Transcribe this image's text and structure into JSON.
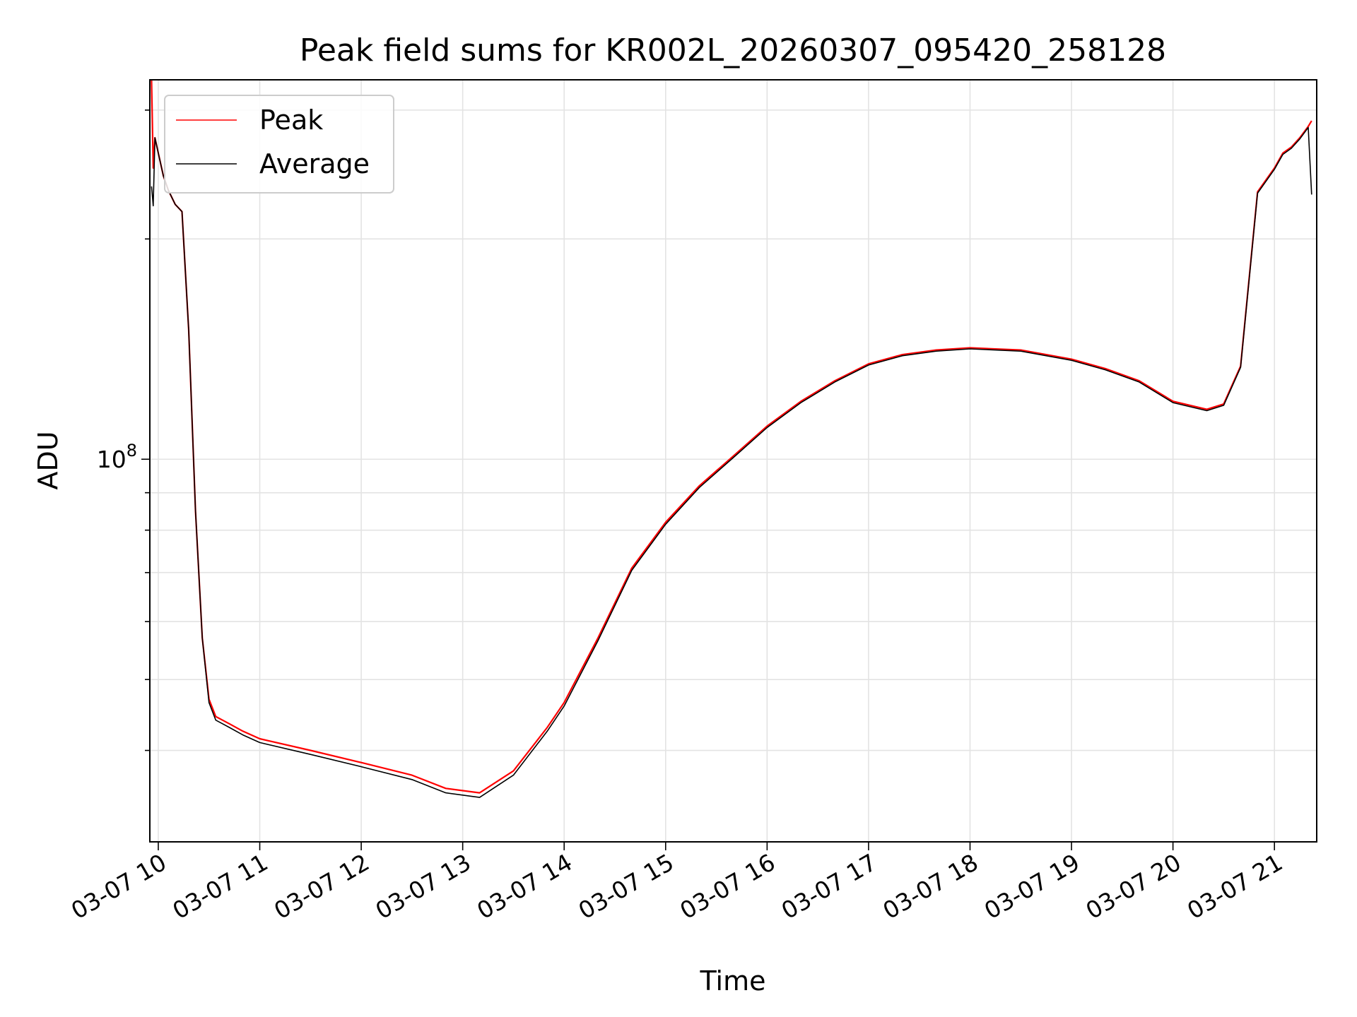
{
  "chart_data": {
    "type": "line",
    "title": "Peak field sums for KR002L_20260307_095420_258128",
    "xlabel": "Time",
    "ylabel": "ADU",
    "x_scale": "time",
    "y_scale": "log",
    "xlim": [
      "03-07 09:55",
      "03-07 21:25"
    ],
    "ylim": [
      30000000,
      330000000
    ],
    "grid": true,
    "legend_position": "top-left",
    "x_ticks": [
      {
        "value": "03-07 10:00",
        "label": "03-07 10"
      },
      {
        "value": "03-07 11:00",
        "label": "03-07 11"
      },
      {
        "value": "03-07 12:00",
        "label": "03-07 12"
      },
      {
        "value": "03-07 13:00",
        "label": "03-07 13"
      },
      {
        "value": "03-07 14:00",
        "label": "03-07 14"
      },
      {
        "value": "03-07 15:00",
        "label": "03-07 15"
      },
      {
        "value": "03-07 16:00",
        "label": "03-07 16"
      },
      {
        "value": "03-07 17:00",
        "label": "03-07 17"
      },
      {
        "value": "03-07 18:00",
        "label": "03-07 18"
      },
      {
        "value": "03-07 19:00",
        "label": "03-07 19"
      },
      {
        "value": "03-07 20:00",
        "label": "03-07 20"
      },
      {
        "value": "03-07 21:00",
        "label": "03-07 21"
      }
    ],
    "y_major_ticks": [
      {
        "value": 100000000,
        "label_base": "10",
        "label_exp": "8"
      }
    ],
    "y_minor_ticks": [
      40000000,
      50000000,
      60000000,
      70000000,
      80000000,
      90000000,
      200000000,
      300000000
    ],
    "series": [
      {
        "name": "Peak",
        "color": "#ff0000",
        "x": [
          "03-07 09:56",
          "03-07 09:57",
          "03-07 09:58",
          "03-07 10:00",
          "03-07 10:03",
          "03-07 10:06",
          "03-07 10:10",
          "03-07 10:14",
          "03-07 10:18",
          "03-07 10:22",
          "03-07 10:26",
          "03-07 10:30",
          "03-07 10:34",
          "03-07 10:38",
          "03-07 10:42",
          "03-07 10:50",
          "03-07 11:00",
          "03-07 11:30",
          "03-07 12:00",
          "03-07 12:30",
          "03-07 12:50",
          "03-07 13:10",
          "03-07 13:30",
          "03-07 13:50",
          "03-07 14:00",
          "03-07 14:20",
          "03-07 14:40",
          "03-07 15:00",
          "03-07 15:20",
          "03-07 15:40",
          "03-07 16:00",
          "03-07 16:20",
          "03-07 16:40",
          "03-07 17:00",
          "03-07 17:20",
          "03-07 17:40",
          "03-07 18:00",
          "03-07 18:30",
          "03-07 19:00",
          "03-07 19:20",
          "03-07 19:40",
          "03-07 20:00",
          "03-07 20:20",
          "03-07 20:30",
          "03-07 20:40",
          "03-07 20:50",
          "03-07 21:00",
          "03-07 21:05",
          "03-07 21:10",
          "03-07 21:15",
          "03-07 21:20",
          "03-07 21:22"
        ],
        "y": [
          330000000,
          250000000,
          275000000,
          262000000,
          244000000,
          233000000,
          223000000,
          218000000,
          150000000,
          85000000,
          57000000,
          47000000,
          44500000,
          44000000,
          43500000,
          42500000,
          41500000,
          40000000,
          38500000,
          37000000,
          35500000,
          35000000,
          37500000,
          43000000,
          46500000,
          57000000,
          71000000,
          82000000,
          92000000,
          101000000,
          111000000,
          120000000,
          128000000,
          135000000,
          139000000,
          141000000,
          142000000,
          141000000,
          137000000,
          133000000,
          128000000,
          120000000,
          117000000,
          119000000,
          134000000,
          232000000,
          250000000,
          262000000,
          267000000,
          275000000,
          285000000,
          290000000
        ]
      },
      {
        "name": "Average",
        "color": "#000000",
        "x": [
          "03-07 09:56",
          "03-07 09:57",
          "03-07 09:58",
          "03-07 10:00",
          "03-07 10:03",
          "03-07 10:06",
          "03-07 10:10",
          "03-07 10:14",
          "03-07 10:18",
          "03-07 10:22",
          "03-07 10:26",
          "03-07 10:30",
          "03-07 10:34",
          "03-07 10:38",
          "03-07 10:42",
          "03-07 10:50",
          "03-07 11:00",
          "03-07 11:30",
          "03-07 12:00",
          "03-07 12:30",
          "03-07 12:50",
          "03-07 13:10",
          "03-07 13:30",
          "03-07 13:50",
          "03-07 14:00",
          "03-07 14:20",
          "03-07 14:40",
          "03-07 15:00",
          "03-07 15:20",
          "03-07 15:40",
          "03-07 16:00",
          "03-07 16:20",
          "03-07 16:40",
          "03-07 17:00",
          "03-07 17:20",
          "03-07 17:40",
          "03-07 18:00",
          "03-07 18:30",
          "03-07 19:00",
          "03-07 19:20",
          "03-07 19:40",
          "03-07 20:00",
          "03-07 20:20",
          "03-07 20:30",
          "03-07 20:40",
          "03-07 20:50",
          "03-07 21:00",
          "03-07 21:05",
          "03-07 21:10",
          "03-07 21:15",
          "03-07 21:20",
          "03-07 21:22"
        ],
        "y": [
          236000000,
          222000000,
          275000000,
          262000000,
          244000000,
          233000000,
          223000000,
          218000000,
          150000000,
          85000000,
          57000000,
          46500000,
          44000000,
          43500000,
          43000000,
          42000000,
          41000000,
          39500000,
          38000000,
          36500000,
          35000000,
          34500000,
          37000000,
          42500000,
          46000000,
          56500000,
          70500000,
          81500000,
          91500000,
          100500000,
          110500000,
          119500000,
          127500000,
          134500000,
          138500000,
          140500000,
          141500000,
          140500000,
          136500000,
          132500000,
          127500000,
          119500000,
          116500000,
          118500000,
          133500000,
          231000000,
          249000000,
          261000000,
          266000000,
          274000000,
          284000000,
          230000000
        ]
      }
    ]
  }
}
